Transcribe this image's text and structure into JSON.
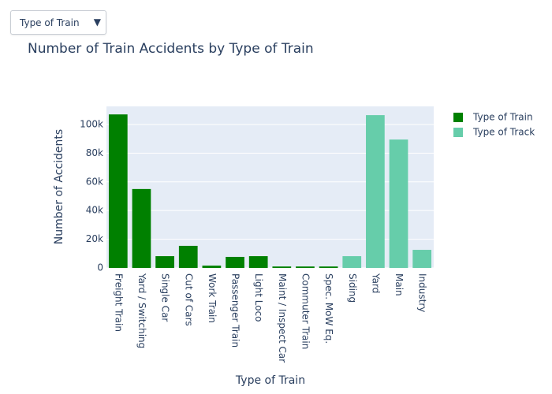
{
  "dropdown": {
    "label": "Type of Train"
  },
  "chart_data": {
    "type": "bar",
    "title": "Number of Train Accidents by Type of Train",
    "x_label": "Type of Train",
    "y_label": "Number of Accidents",
    "categories": [
      "Freight Train",
      "Yard / Switching",
      "Single Car",
      "Cut of Cars",
      "Work Train",
      "Passenger Train",
      "Light Loco",
      "Maint / Inspect Car",
      "Commuter Train",
      "Spec. MoW Eq.",
      "Siding",
      "Yard",
      "Main",
      "Industry"
    ],
    "series": [
      {
        "name": "Type of Train",
        "color": "#008000",
        "values": [
          107000,
          55000,
          8200,
          15400,
          1600,
          7700,
          8200,
          1000,
          1000,
          1000,
          null,
          null,
          null,
          null
        ]
      },
      {
        "name": "Type of Track",
        "color": "#66cdaa",
        "values": [
          null,
          null,
          null,
          null,
          null,
          null,
          null,
          null,
          null,
          null,
          8200,
          106500,
          89500,
          12600
        ]
      }
    ],
    "ylim": [
      0,
      112600
    ],
    "yticks": [
      0,
      {
        "value": 20000,
        "label": "20k"
      },
      {
        "value": 40000,
        "label": "40k"
      },
      {
        "value": 60000,
        "label": "60k"
      },
      {
        "value": 80000,
        "label": "80k"
      },
      {
        "value": 100000,
        "label": "100k"
      }
    ],
    "grid": true,
    "legend": "right"
  }
}
